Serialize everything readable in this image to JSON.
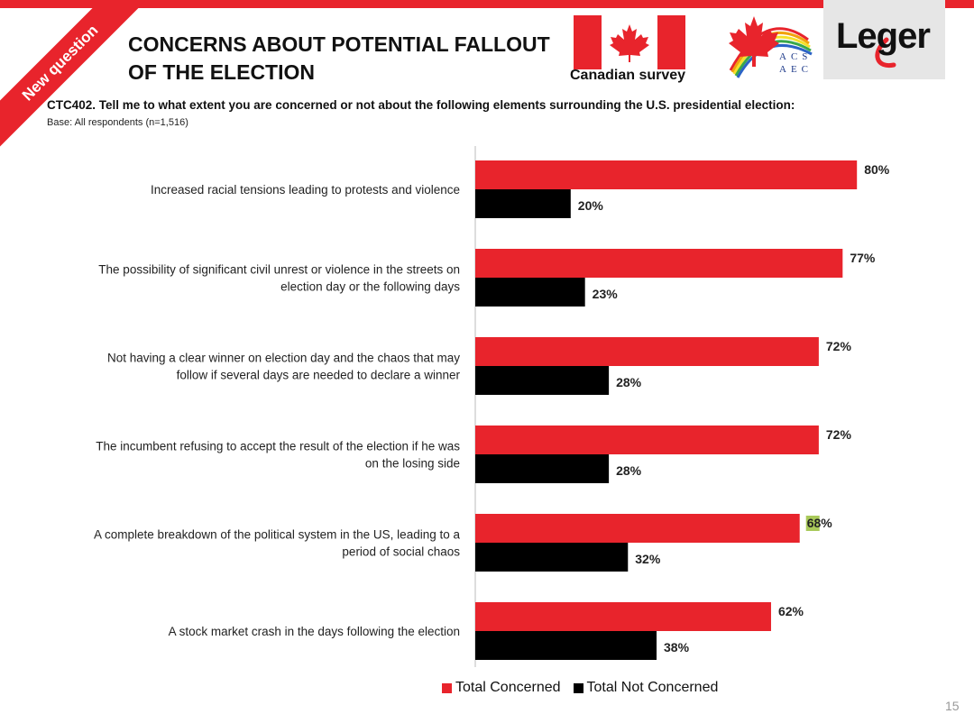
{
  "header": {
    "ribbon_label": "New question",
    "title": "CONCERNS ABOUT POTENTIAL FALLOUT\n OF THE ELECTION",
    "flag_caption": "Canadian survey",
    "acs_logo_text": "ACS AEC",
    "brand": "Leger",
    "question": "CTC402. Tell me to what extent you are concerned or not about the following elements surrounding the U.S. presidential election:",
    "base": "Base: All respondents (n=1,516)"
  },
  "colors": {
    "concerned": "#e8242c",
    "not_concerned": "#000000",
    "highlight": "#a9c95a"
  },
  "chart_data": {
    "type": "bar",
    "orientation": "horizontal",
    "categories": [
      "Increased racial tensions leading to protests and violence",
      "The possibility of significant civil unrest or violence in the streets on election day or the following days",
      "Not having a clear winner on election day and the chaos that may follow if several days are needed to declare a winner",
      "The incumbent refusing to accept the result of the election if he was on the losing side",
      "A complete breakdown of the political system in the US, leading to a period of social chaos",
      "A stock market crash in the days following the election"
    ],
    "category_lines": [
      [
        "Increased racial tensions leading to protests and violence"
      ],
      [
        "The possibility of significant civil unrest or violence in the streets on",
        "election day or the following days"
      ],
      [
        "Not having a clear winner on election day and the chaos that may",
        "follow if several days are needed to declare a winner"
      ],
      [
        "The incumbent refusing to accept the result of the election if he was",
        "on the losing side"
      ],
      [
        "A complete breakdown of the political system in the US, leading to a",
        "period of social chaos"
      ],
      [
        "A stock market crash in the days following the election"
      ]
    ],
    "series": [
      {
        "name": "Total Concerned",
        "values": [
          80,
          77,
          72,
          72,
          68,
          62
        ],
        "labels": [
          "80%",
          "77%",
          "72%",
          "72%",
          "68%",
          "62%"
        ]
      },
      {
        "name": "Total Not Concerned",
        "values": [
          20,
          23,
          28,
          28,
          32,
          38
        ],
        "labels": [
          "20%",
          "23%",
          "28%",
          "28%",
          "32%",
          "38%"
        ]
      }
    ],
    "highlighted_label": {
      "series": 0,
      "index": 4
    },
    "xlim": [
      0,
      100
    ],
    "legend_position": "bottom",
    "grid": false
  },
  "footer": {
    "page_number": "15"
  }
}
